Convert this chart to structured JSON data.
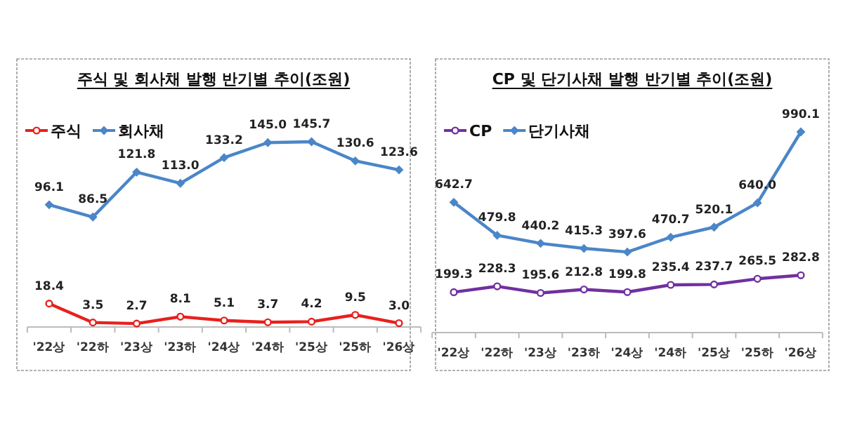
{
  "chart_data": [
    {
      "type": "line",
      "title": "주식 및 회사채 발행 반기별 추이(조원)",
      "categories": [
        "'22상",
        "'22하",
        "'23상",
        "'23하",
        "'24상",
        "'24하",
        "'25상",
        "'25하",
        "'26상"
      ],
      "legend": "top left",
      "tick_labels": "x",
      "series": [
        {
          "name": "주식",
          "color": "#e8201e",
          "marker": "circle",
          "values": [
            18.4,
            3.5,
            2.7,
            8.1,
            5.1,
            3.7,
            4.2,
            9.5,
            3.0
          ],
          "value_labels": [
            "18.4",
            "3.5",
            "2.7",
            "8.1",
            "5.1",
            "3.7",
            "4.2",
            "9.5",
            "3.0"
          ]
        },
        {
          "name": "회사채",
          "color": "#4a86c8",
          "marker": "diamond",
          "values": [
            96.1,
            86.5,
            121.8,
            113.0,
            133.2,
            145.0,
            145.7,
            130.6,
            123.6
          ],
          "value_labels": [
            "96.1",
            "86.5",
            "121.8",
            "113.0",
            "133.2",
            "145.0",
            "145.7",
            "130.6",
            "123.6"
          ]
        }
      ]
    },
    {
      "type": "line",
      "title": "CP 및 단기사채 발행 반기별 추이(조원)",
      "categories": [
        "'22상",
        "'22하",
        "'23상",
        "'23하",
        "'24상",
        "'24하",
        "'25상",
        "'25하",
        "'26상"
      ],
      "legend": "top left",
      "tick_labels": "x",
      "series": [
        {
          "name": "CP",
          "color": "#7030a0",
          "marker": "circle",
          "values": [
            199.3,
            228.3,
            195.6,
            212.8,
            199.8,
            235.4,
            237.7,
            265.5,
            282.8
          ],
          "value_labels": [
            "199.3",
            "228.3",
            "195.6",
            "212.8",
            "199.8",
            "235.4",
            "237.7",
            "265.5",
            "282.8"
          ]
        },
        {
          "name": "단기사채",
          "color": "#4a86c8",
          "marker": "diamond",
          "values": [
            642.7,
            479.8,
            440.2,
            415.3,
            397.6,
            470.7,
            520.1,
            640.0,
            990.1
          ],
          "value_labels": [
            "642.7",
            "479.8",
            "440.2",
            "415.3",
            "397.6",
            "470.7",
            "520.1",
            "640.0",
            "990.1"
          ]
        }
      ]
    }
  ]
}
